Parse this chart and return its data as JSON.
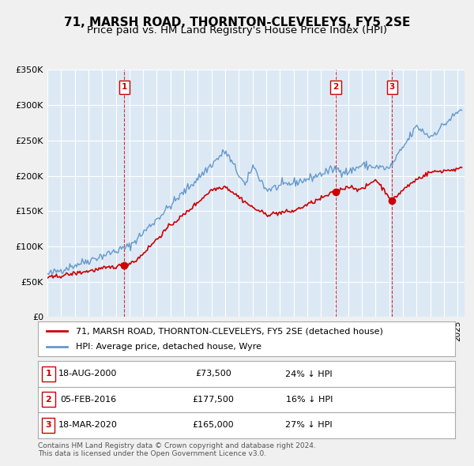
{
  "title": "71, MARSH ROAD, THORNTON-CLEVELEYS, FY5 2SE",
  "subtitle": "Price paid vs. HM Land Registry's House Price Index (HPI)",
  "ylabel": "",
  "ylim": [
    0,
    350000
  ],
  "yticks": [
    0,
    50000,
    100000,
    150000,
    200000,
    250000,
    300000,
    350000
  ],
  "ytick_labels": [
    "£0",
    "£50K",
    "£100K",
    "£150K",
    "£200K",
    "£250K",
    "£300K",
    "£350K"
  ],
  "xlim_start": 1995.0,
  "xlim_end": 2025.5,
  "background_color": "#dce9f5",
  "plot_bg_color": "#dce9f5",
  "outer_bg_color": "#f0f0f0",
  "sale_color": "#cc0000",
  "hpi_color": "#6699cc",
  "sale_label": "71, MARSH ROAD, THORNTON-CLEVELEYS, FY5 2SE (detached house)",
  "hpi_label": "HPI: Average price, detached house, Wyre",
  "transactions": [
    {
      "num": 1,
      "date_label": "18-AUG-2000",
      "price": 73500,
      "pct": "24%",
      "year": 2000.62
    },
    {
      "num": 2,
      "date_label": "05-FEB-2016",
      "price": 177500,
      "pct": "16%",
      "year": 2016.09
    },
    {
      "num": 3,
      "date_label": "18-MAR-2020",
      "price": 165000,
      "pct": "27%",
      "year": 2020.21
    }
  ],
  "footer": "Contains HM Land Registry data © Crown copyright and database right 2024.\nThis data is licensed under the Open Government Licence v3.0.",
  "title_fontsize": 11,
  "subtitle_fontsize": 9.5,
  "tick_fontsize": 8,
  "legend_fontsize": 8,
  "table_fontsize": 8
}
